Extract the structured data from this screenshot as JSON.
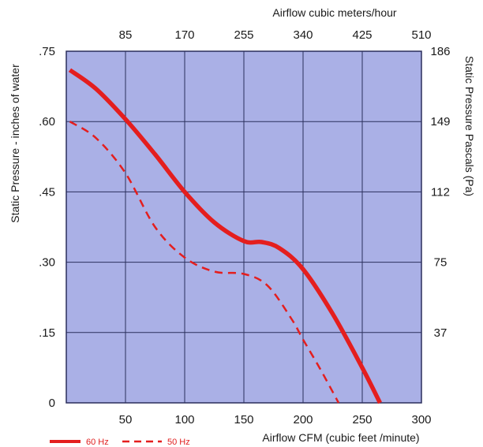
{
  "chart_data": {
    "type": "line",
    "xlabel": "Airflow  CFM (cubic feet /minute)",
    "x2label": "Airflow cubic meters/hour",
    "ylabel": "Static Pressure - inches of water",
    "y2label": "Static Pressure Pascals (Pa)",
    "xlim": [
      0,
      300
    ],
    "ylim": [
      0,
      0.75
    ],
    "x_ticks": [
      "50",
      "100",
      "150",
      "200",
      "250",
      "300"
    ],
    "x_tick_values": [
      50,
      100,
      150,
      200,
      250,
      300
    ],
    "x2_ticks": [
      "85",
      "170",
      "255",
      "340",
      "425",
      "510"
    ],
    "x2_tick_values": [
      50,
      100,
      150,
      200,
      250,
      300
    ],
    "y_ticks": [
      "0",
      ".15",
      ".30",
      ".45",
      ".60",
      ".75"
    ],
    "y_tick_values": [
      0,
      0.15,
      0.3,
      0.45,
      0.6,
      0.75
    ],
    "y2_ticks": [
      "37",
      "75",
      "112",
      "149",
      "186"
    ],
    "y2_tick_values": [
      0.15,
      0.3,
      0.45,
      0.6,
      0.75
    ],
    "grid": true,
    "legend_position": "bottom-left",
    "colors": {
      "plot_bg": "#aab0e6",
      "grid": "#2b2f5c",
      "series": "#e41e1e"
    },
    "series": [
      {
        "name": "60 Hz",
        "style": "solid",
        "x": [
          3,
          25,
          50,
          75,
          100,
          125,
          150,
          165,
          180,
          200,
          225,
          250,
          265
        ],
        "y": [
          0.71,
          0.67,
          0.605,
          0.53,
          0.45,
          0.385,
          0.345,
          0.343,
          0.33,
          0.285,
          0.19,
          0.075,
          0.0
        ]
      },
      {
        "name": "50 Hz",
        "style": "dashed",
        "x": [
          3,
          25,
          50,
          75,
          100,
          125,
          150,
          170,
          190,
          200,
          215,
          230
        ],
        "y": [
          0.6,
          0.565,
          0.49,
          0.375,
          0.31,
          0.28,
          0.275,
          0.25,
          0.18,
          0.135,
          0.07,
          0.0
        ]
      }
    ]
  }
}
